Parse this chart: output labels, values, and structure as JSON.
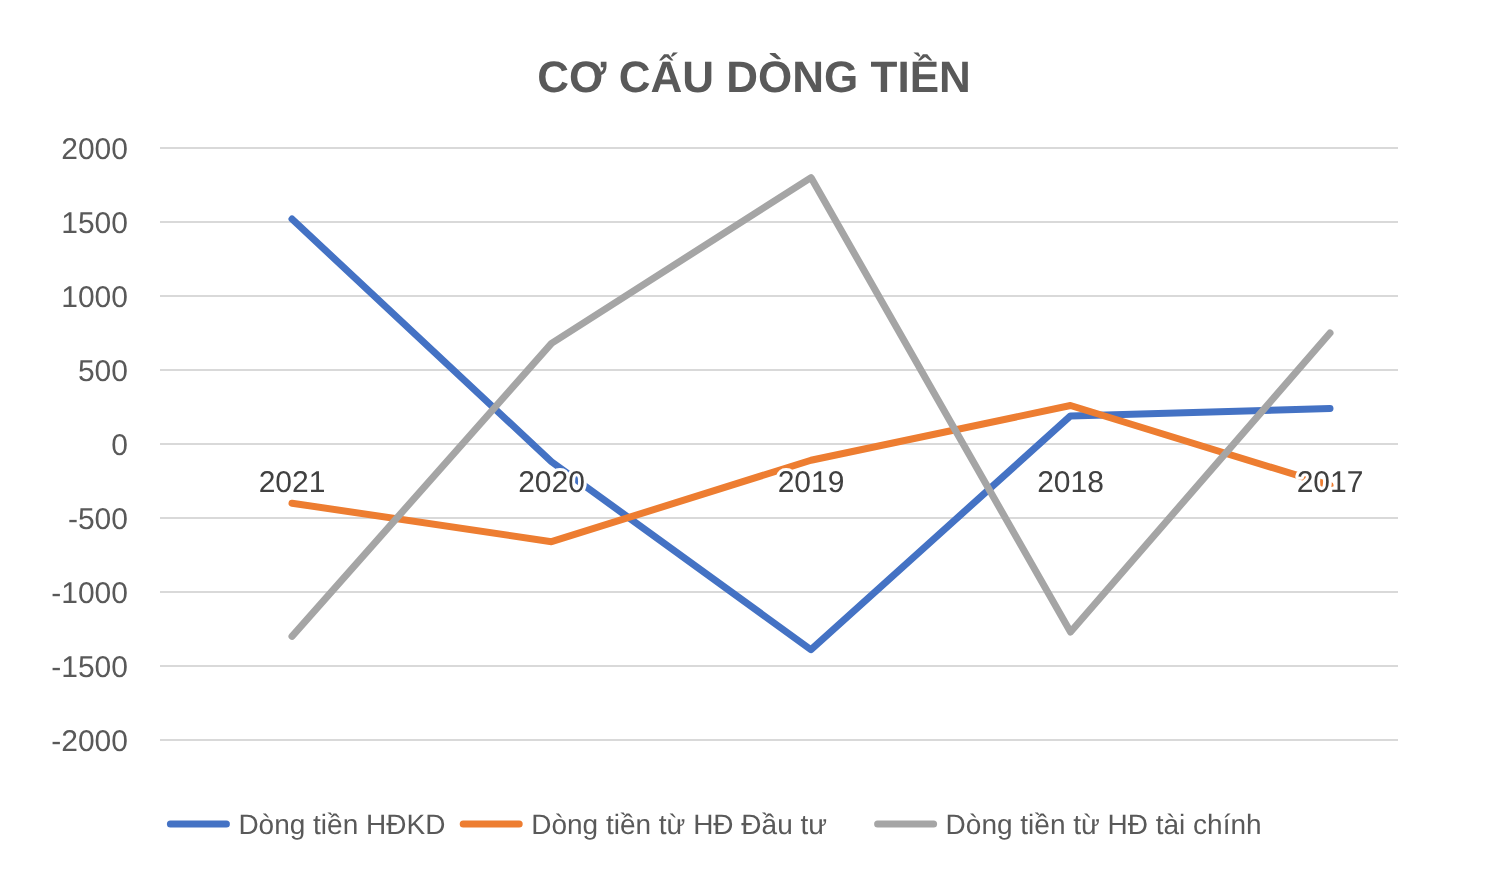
{
  "chart_data": {
    "type": "line",
    "title": "CƠ CẤU DÒNG TIỀN",
    "categories": [
      "2021",
      "2020",
      "2019",
      "2018",
      "2017"
    ],
    "series": [
      {
        "name": "Dòng tiền HĐKD",
        "color": "#4472c4",
        "values": [
          1520,
          -120,
          -1390,
          190,
          240
        ]
      },
      {
        "name": "Dòng tiền từ HĐ Đầu tư",
        "color": "#ed7d31",
        "values": [
          -400,
          -660,
          -110,
          260,
          -280
        ]
      },
      {
        "name": "Dòng tiền từ HĐ tài chính",
        "color": "#a5a5a5",
        "values": [
          -1300,
          680,
          1800,
          -1270,
          750
        ]
      }
    ],
    "ylim": [
      -2000,
      2000
    ],
    "yticks": [
      -2000,
      -1500,
      -1000,
      -500,
      0,
      500,
      1000,
      1500,
      2000
    ],
    "grid": "y",
    "legend": "bottom",
    "marker": "none",
    "line_style": "solid"
  }
}
